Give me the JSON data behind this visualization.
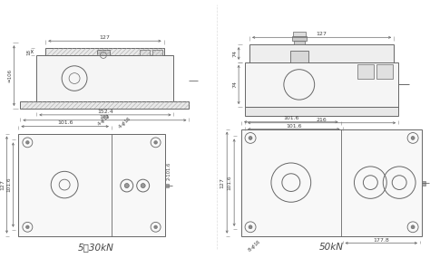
{
  "bg_color": "#ffffff",
  "line_color": "#666666",
  "text_color": "#444444",
  "title_left": "5～30kN",
  "title_right": "50kN",
  "lw_main": 0.7,
  "lw_dim": 0.5,
  "fs_dim": 4.5,
  "fs_title": 7.5
}
